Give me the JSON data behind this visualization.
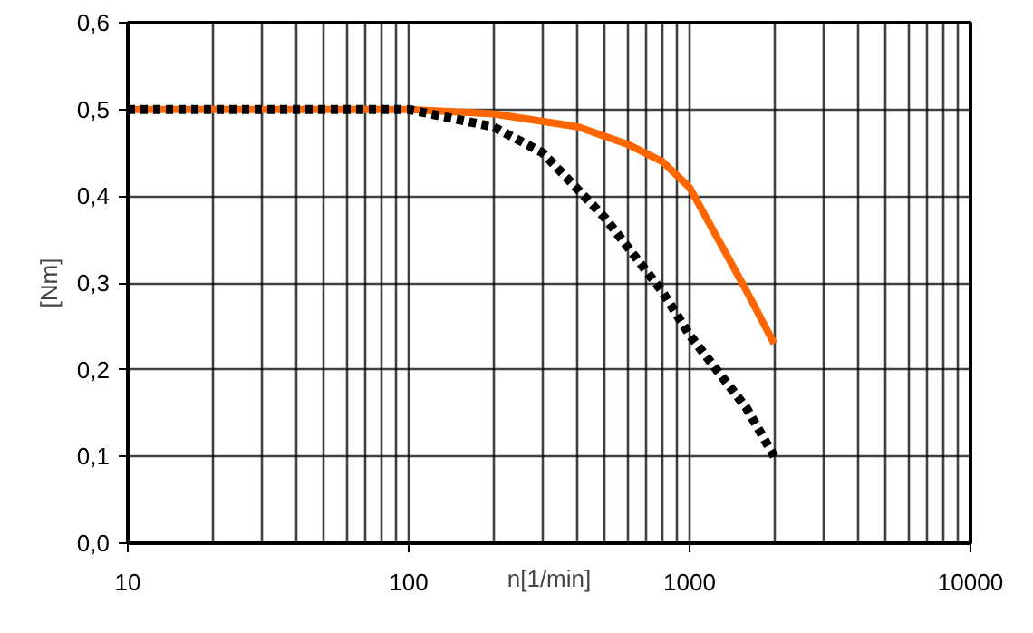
{
  "chart_data": {
    "type": "line",
    "xlabel": "n[1/min]",
    "ylabel": "[Nm]",
    "log": "x",
    "grid": true,
    "xlim": [
      10,
      10000
    ],
    "xticks": [
      10,
      100,
      1000,
      10000
    ],
    "ylim": [
      0,
      0.6
    ],
    "yticks": [
      {
        "value": 0,
        "label": "0,0"
      },
      {
        "value": 0.1,
        "label": "0,1"
      },
      {
        "value": 0.2,
        "label": "0,2"
      },
      {
        "value": 0.3,
        "label": "0,3"
      },
      {
        "value": 0.4,
        "label": "0,4"
      },
      {
        "value": 0.5,
        "label": "0,5"
      },
      {
        "value": 0.6,
        "label": "0,6"
      }
    ],
    "series": [
      {
        "color": "#ff6600",
        "line_style": "solid",
        "x": [
          10,
          100,
          200,
          400,
          600,
          800,
          1000,
          1600,
          2000
        ],
        "values": [
          0.5,
          0.5,
          0.495,
          0.48,
          0.46,
          0.44,
          0.41,
          0.29,
          0.23
        ]
      },
      {
        "color": "#000000",
        "line_style": "dotted",
        "x": [
          10,
          100,
          200,
          300,
          500,
          800,
          1000,
          1600,
          2000
        ],
        "values": [
          0.5,
          0.5,
          0.48,
          0.45,
          0.375,
          0.29,
          0.24,
          0.155,
          0.1
        ]
      }
    ]
  }
}
